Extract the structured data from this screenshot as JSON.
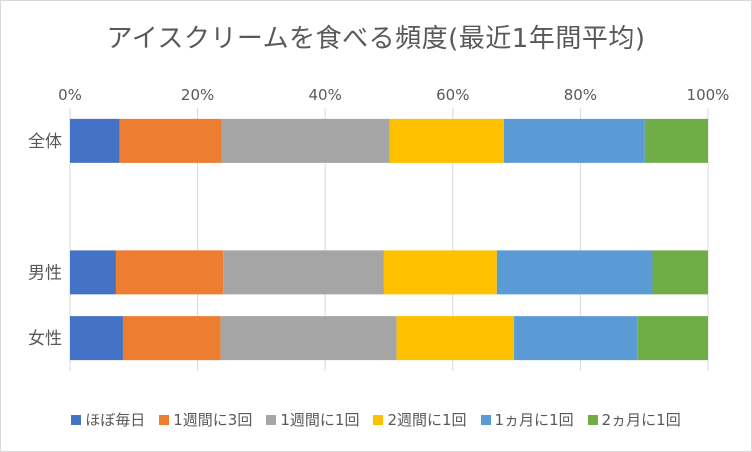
{
  "chart_data": {
    "type": "bar",
    "orientation": "horizontal",
    "stacked": "percent",
    "title": "アイスクリームを食べる頻度(最近1年間平均)",
    "x_ticks": [
      "0%",
      "20%",
      "40%",
      "60%",
      "80%",
      "100%"
    ],
    "xlim": [
      0,
      100
    ],
    "grid": true,
    "legend_position": "bottom",
    "categories": [
      "全体",
      "男性",
      "女性"
    ],
    "slot_order": [
      "全体",
      "",
      "男性",
      "女性"
    ],
    "series": [
      {
        "name": "ほぼ毎日",
        "color": "#4472C4",
        "values": [
          7.8,
          7.2,
          8.3
        ]
      },
      {
        "name": "1週間に3回",
        "color": "#ED7D31",
        "values": [
          16.0,
          16.8,
          15.3
        ]
      },
      {
        "name": "1週間に1回",
        "color": "#A5A5A5",
        "values": [
          26.3,
          25.2,
          27.6
        ]
      },
      {
        "name": "2週間に1回",
        "color": "#FFC000",
        "values": [
          17.9,
          17.7,
          18.4
        ]
      },
      {
        "name": "1ヵ月に1回",
        "color": "#5B9BD5",
        "values": [
          22.1,
          24.4,
          19.3
        ]
      },
      {
        "name": "2ヵ月に1回",
        "color": "#70AD47",
        "values": [
          9.9,
          8.7,
          11.1
        ]
      }
    ]
  }
}
